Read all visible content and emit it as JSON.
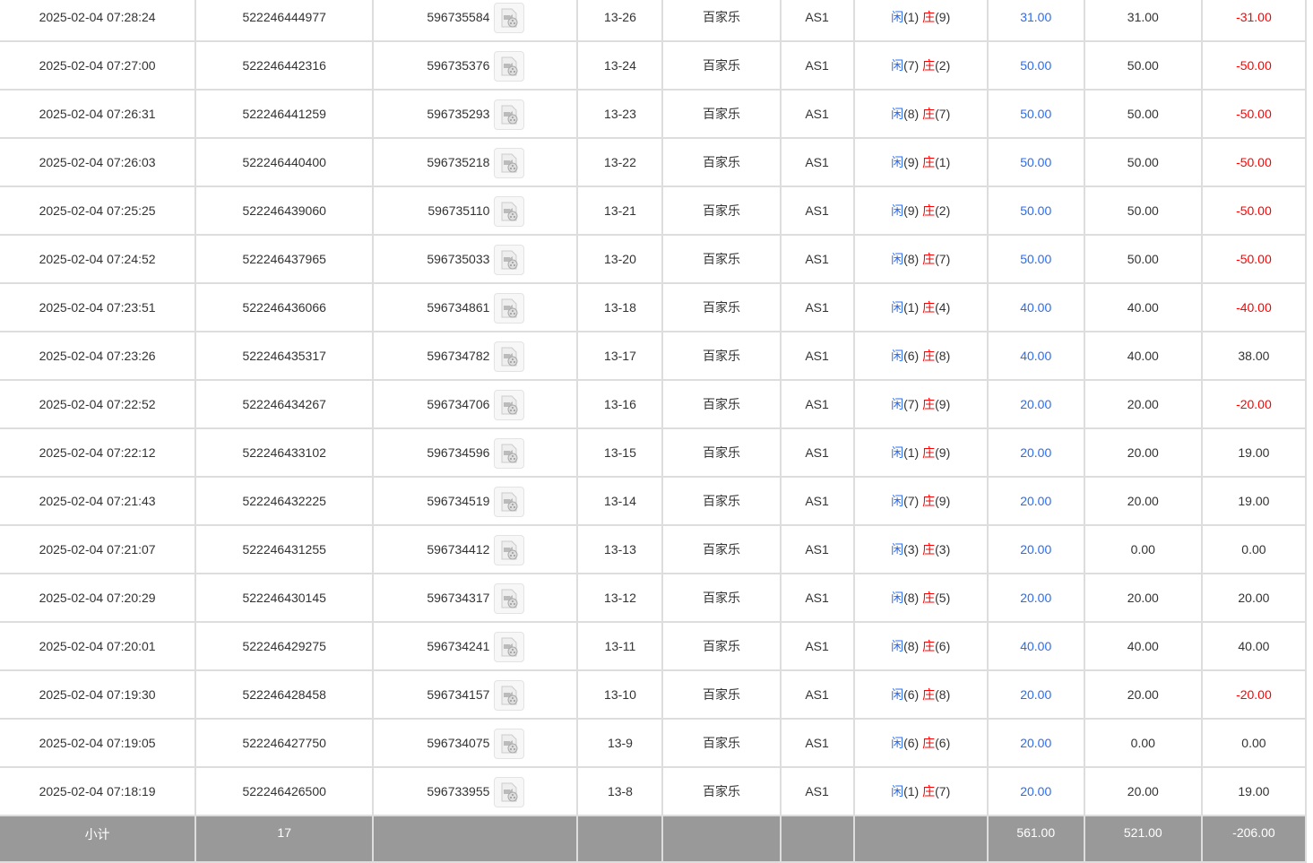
{
  "rows": [
    [
      "2025-02-04 07:28:24",
      "522246444977",
      "596735584",
      "13-26",
      "百家乐",
      "AS1",
      "1",
      "9",
      "31.00",
      "31.00",
      "-31.00"
    ],
    [
      "2025-02-04 07:27:00",
      "522246442316",
      "596735376",
      "13-24",
      "百家乐",
      "AS1",
      "7",
      "2",
      "50.00",
      "50.00",
      "-50.00"
    ],
    [
      "2025-02-04 07:26:31",
      "522246441259",
      "596735293",
      "13-23",
      "百家乐",
      "AS1",
      "8",
      "7",
      "50.00",
      "50.00",
      "-50.00"
    ],
    [
      "2025-02-04 07:26:03",
      "522246440400",
      "596735218",
      "13-22",
      "百家乐",
      "AS1",
      "9",
      "1",
      "50.00",
      "50.00",
      "-50.00"
    ],
    [
      "2025-02-04 07:25:25",
      "522246439060",
      "596735110",
      "13-21",
      "百家乐",
      "AS1",
      "9",
      "2",
      "50.00",
      "50.00",
      "-50.00"
    ],
    [
      "2025-02-04 07:24:52",
      "522246437965",
      "596735033",
      "13-20",
      "百家乐",
      "AS1",
      "8",
      "7",
      "50.00",
      "50.00",
      "-50.00"
    ],
    [
      "2025-02-04 07:23:51",
      "522246436066",
      "596734861",
      "13-18",
      "百家乐",
      "AS1",
      "1",
      "4",
      "40.00",
      "40.00",
      "-40.00"
    ],
    [
      "2025-02-04 07:23:26",
      "522246435317",
      "596734782",
      "13-17",
      "百家乐",
      "AS1",
      "6",
      "8",
      "40.00",
      "40.00",
      "38.00"
    ],
    [
      "2025-02-04 07:22:52",
      "522246434267",
      "596734706",
      "13-16",
      "百家乐",
      "AS1",
      "7",
      "9",
      "20.00",
      "20.00",
      "-20.00"
    ],
    [
      "2025-02-04 07:22:12",
      "522246433102",
      "596734596",
      "13-15",
      "百家乐",
      "AS1",
      "1",
      "9",
      "20.00",
      "20.00",
      "19.00"
    ],
    [
      "2025-02-04 07:21:43",
      "522246432225",
      "596734519",
      "13-14",
      "百家乐",
      "AS1",
      "7",
      "9",
      "20.00",
      "20.00",
      "19.00"
    ],
    [
      "2025-02-04 07:21:07",
      "522246431255",
      "596734412",
      "13-13",
      "百家乐",
      "AS1",
      "3",
      "3",
      "20.00",
      "0.00",
      "0.00"
    ],
    [
      "2025-02-04 07:20:29",
      "522246430145",
      "596734317",
      "13-12",
      "百家乐",
      "AS1",
      "8",
      "5",
      "20.00",
      "20.00",
      "20.00"
    ],
    [
      "2025-02-04 07:20:01",
      "522246429275",
      "596734241",
      "13-11",
      "百家乐",
      "AS1",
      "8",
      "6",
      "40.00",
      "40.00",
      "40.00"
    ],
    [
      "2025-02-04 07:19:30",
      "522246428458",
      "596734157",
      "13-10",
      "百家乐",
      "AS1",
      "6",
      "8",
      "20.00",
      "20.00",
      "-20.00"
    ],
    [
      "2025-02-04 07:19:05",
      "522246427750",
      "596734075",
      "13-9",
      "百家乐",
      "AS1",
      "6",
      "6",
      "20.00",
      "0.00",
      "0.00"
    ],
    [
      "2025-02-04 07:18:19",
      "522246426500",
      "596733955",
      "13-8",
      "百家乐",
      "AS1",
      "1",
      "7",
      "20.00",
      "20.00",
      "19.00"
    ]
  ],
  "labels": {
    "player": "闲",
    "banker": "庄"
  },
  "summary": {
    "label": "小计",
    "count": "17",
    "bet": "561.00",
    "valid": "521.00",
    "result": "-206.00"
  },
  "colors": {
    "blue": "#2b6cf0",
    "red": "#ff0000",
    "summary_bg": "#999999"
  },
  "icons": {
    "replay": "video-replay-icon"
  }
}
